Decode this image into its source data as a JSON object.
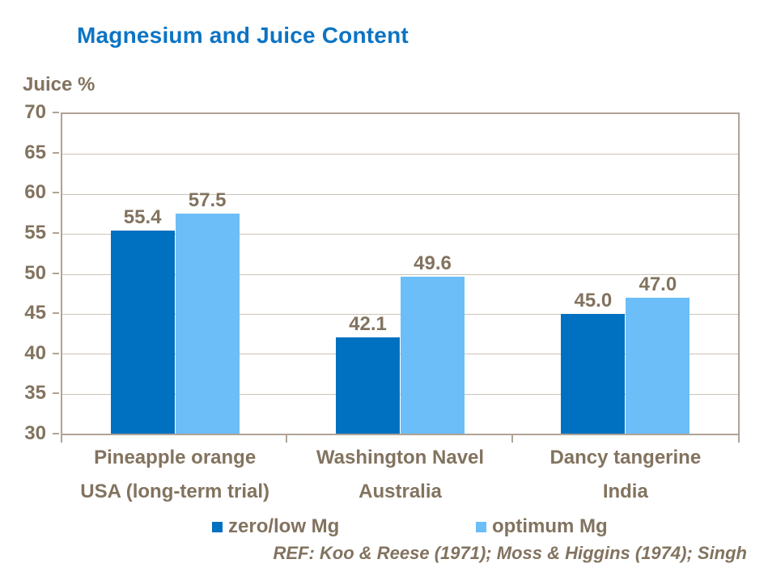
{
  "title": "Magnesium and Juice Content",
  "y_axis_label": "Juice %",
  "chart_data": {
    "type": "bar",
    "title": "Magnesium and Juice Content",
    "xlabel": "",
    "ylabel": "Juice %",
    "ylim": [
      30,
      70
    ],
    "yticks": [
      70,
      65,
      60,
      55,
      50,
      45,
      40,
      35,
      30
    ],
    "grid": true,
    "legend_position": "bottom",
    "categories": [
      {
        "name": "Pineapple orange",
        "region": "USA (long-term trial)"
      },
      {
        "name": "Washington Navel",
        "region": "Australia"
      },
      {
        "name": "Dancy tangerine",
        "region": "India"
      }
    ],
    "series": [
      {
        "name": "zero/low Mg",
        "color": "#0070C0",
        "values": [
          55.4,
          42.1,
          45.0
        ],
        "labels": [
          "55.4",
          "42.1",
          "45.0"
        ]
      },
      {
        "name": "optimum Mg",
        "color": "#6CBEF8",
        "values": [
          57.5,
          49.6,
          47.0
        ],
        "labels": [
          "57.5",
          "49.6",
          "47.0"
        ]
      }
    ]
  },
  "legend": {
    "items": [
      {
        "label": "zero/low Mg",
        "color": "#0070C0"
      },
      {
        "label": "optimum Mg",
        "color": "#6CBEF8"
      }
    ]
  },
  "footer": {
    "reference": "REF: Koo & Reese (1971); Moss & Higgins (1974); Singh"
  },
  "colors": {
    "title": "#0C74C4",
    "text": "#82735F",
    "axis": "#AFA396",
    "gridline": "#CCC3B7",
    "background": "#FFFFFF"
  }
}
